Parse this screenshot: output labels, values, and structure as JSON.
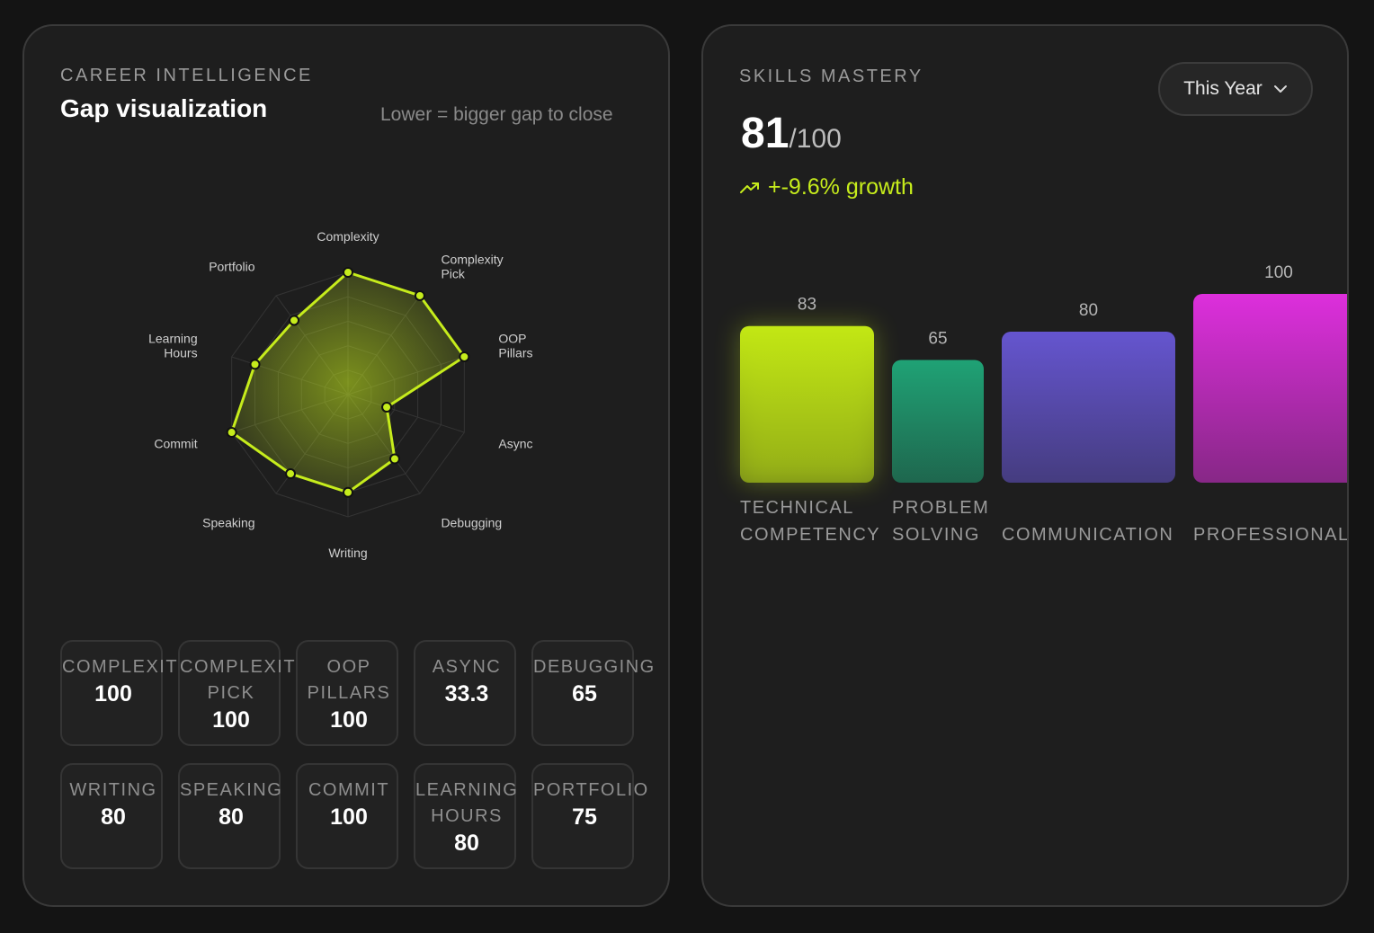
{
  "left_card": {
    "eyebrow": "CAREER INTELLIGENCE",
    "title": "Gap visualization",
    "hint": "Lower = bigger gap to close",
    "tiles": [
      {
        "label": "COMPLEXITY",
        "value": "100"
      },
      {
        "label": "COMPLEXITY PICK",
        "value": "100"
      },
      {
        "label": "OOP PILLARS",
        "value": "100"
      },
      {
        "label": "ASYNC",
        "value": "33.3"
      },
      {
        "label": "DEBUGGING",
        "value": "65"
      },
      {
        "label": "WRITING",
        "value": "80"
      },
      {
        "label": "SPEAKING",
        "value": "80"
      },
      {
        "label": "COMMIT",
        "value": "100"
      },
      {
        "label": "LEARNING HOURS",
        "value": "80"
      },
      {
        "label": "PORTFOLIO",
        "value": "75"
      }
    ]
  },
  "right_card": {
    "eyebrow": "SKILLS MASTERY",
    "score": "81",
    "score_suffix": "/100",
    "growth": "+-9.6% growth",
    "period_selector": "This Year",
    "icons": {
      "growth": "trend-up-icon",
      "dropdown": "chevron-down-icon"
    }
  },
  "chart_data": [
    {
      "type": "radar",
      "axes": [
        "Complexity",
        "Complexity Pick",
        "OOP Pillars",
        "Async",
        "Debugging",
        "Writing",
        "Speaking",
        "Commit",
        "Learning Hours",
        "Portfolio"
      ],
      "values": [
        100,
        100,
        100,
        33.3,
        65,
        80,
        80,
        100,
        80,
        75
      ],
      "range": [
        0,
        100
      ],
      "color": "#c6ec1c"
    },
    {
      "type": "bar",
      "categories": [
        "TECHNICAL COMPETENCY",
        "PROBLEM SOLVING",
        "COMMUNICATION",
        "PROFESSIONALISM"
      ],
      "values": [
        83,
        65,
        80,
        100
      ],
      "value_labels": [
        "83",
        "65",
        "80",
        "100"
      ],
      "colors": [
        "#c3e814",
        "#1fa275",
        "#6555cf",
        "#dd2fdc"
      ]
    }
  ]
}
